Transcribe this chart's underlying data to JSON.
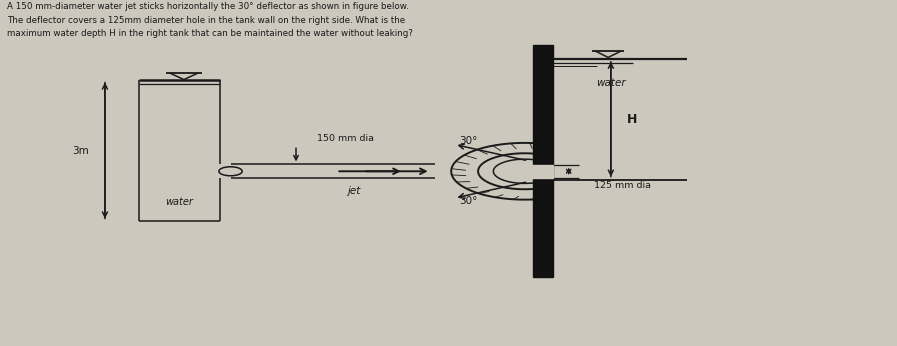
{
  "bg_color": "#ccc8be",
  "line_color": "#1a1a1a",
  "text_color": "#1a1a1a",
  "title_lines": [
    "A 150 mm-diameter water jet sticks horizontally the 30° deflector as shown in figure below.",
    "The deflector covers a 125mm diameter hole in the tank wall on the right side. What is the",
    "maximum water depth H in the right tank that can be maintained the water without leaking?"
  ],
  "label_3m": "3m",
  "label_150mm": "150 mm dia",
  "label_125mm": "125 mm dia",
  "label_water_left": "water",
  "label_water_right": "water",
  "label_jet": "jet",
  "label_H": "H",
  "label_30_top": "30°",
  "label_30_bot": "30°"
}
